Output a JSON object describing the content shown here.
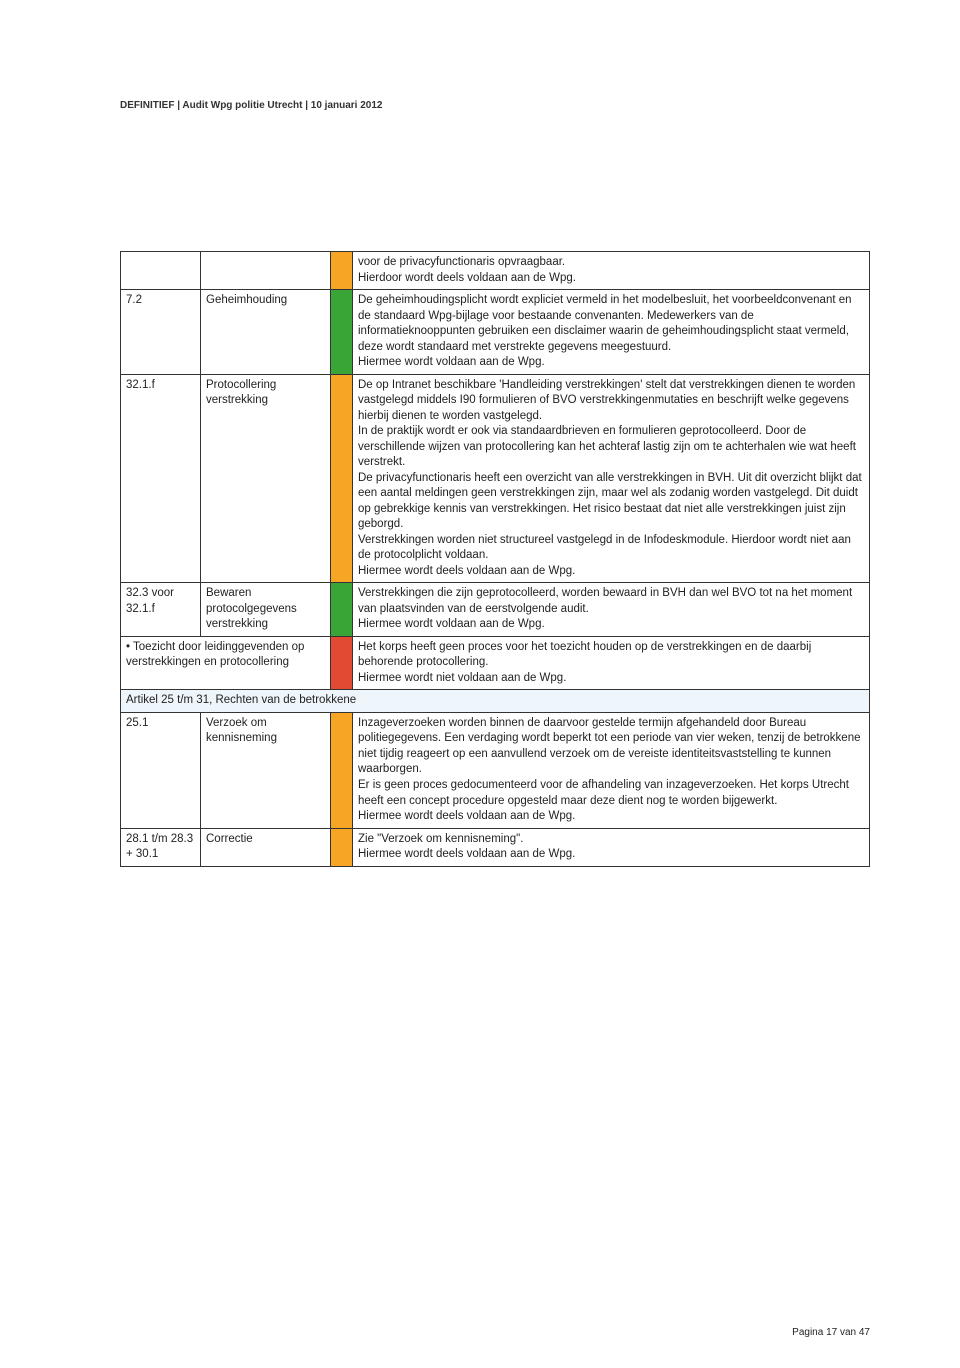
{
  "header": "DEFINITIEF | Audit Wpg politie Utrecht | 10 januari 2012",
  "colors": {
    "orange": "#f6a624",
    "green": "#3aa537",
    "red": "#e24a33"
  },
  "rows": [
    {
      "ref": "",
      "topic": "",
      "color_key": "orange",
      "text": "voor de privacyfunctionaris opvraagbaar.\nHierdoor wordt deels voldaan aan de Wpg."
    },
    {
      "ref": "7.2",
      "topic": "Geheimhouding",
      "color_key": "green",
      "text": "De geheimhoudingsplicht wordt expliciet vermeld in het modelbesluit, het voorbeeldconvenant en de standaard Wpg-bijlage voor bestaande convenanten. Medewerkers van de informatieknooppunten gebruiken een disclaimer waarin de geheimhoudingsplicht staat vermeld, deze wordt standaard met verstrekte gegevens meegestuurd.\nHiermee wordt voldaan aan de Wpg."
    },
    {
      "ref": "32.1.f",
      "topic": "Protocollering verstrekking",
      "color_key": "orange",
      "text": "De op Intranet beschikbare 'Handleiding verstrekkingen' stelt dat verstrekkingen dienen te worden vastgelegd middels I90 formulieren of BVO verstrekkingenmutaties en beschrijft welke gegevens hierbij dienen te worden vastgelegd.\nIn de praktijk wordt er ook via standaardbrieven en formulieren geprotocolleerd. Door de verschillende wijzen van protocollering kan het achteraf lastig zijn om te achterhalen wie wat heeft verstrekt.\nDe privacyfunctionaris heeft een overzicht van alle verstrekkingen in BVH. Uit dit overzicht blijkt dat een aantal meldingen geen verstrekkingen zijn, maar wel als zodanig worden vastgelegd. Dit duidt op gebrekkige kennis van verstrekkingen. Het risico bestaat dat niet alle verstrekkingen juist zijn geborgd.\nVerstrekkingen worden niet structureel vastgelegd in de Infodeskmodule. Hierdoor wordt niet aan de protocolplicht voldaan.\nHiermee wordt deels voldaan aan de Wpg."
    },
    {
      "ref": "32.3 voor 32.1.f",
      "topic": "Bewaren protocolgegevens verstrekking",
      "color_key": "green",
      "text": "Verstrekkingen die zijn geprotocolleerd, worden bewaard in BVH dan wel BVO tot na het moment van plaatsvinden van de eerstvolgende audit.\nHiermee wordt voldaan aan de Wpg."
    },
    {
      "ref_span": "• Toezicht door leidinggevenden op verstrekkingen en protocollering",
      "color_key": "red",
      "text": "Het korps heeft geen proces voor het toezicht houden op de verstrekkingen en de daarbij behorende protocollering.\nHiermee wordt niet voldaan aan de Wpg."
    }
  ],
  "section_header": "Artikel 25 t/m 31, Rechten van de betrokkene",
  "rows2": [
    {
      "ref": "25.1",
      "topic": "Verzoek om kennisneming",
      "color_key": "orange",
      "text": "Inzageverzoeken worden binnen de daarvoor gestelde termijn afgehandeld door Bureau politiegegevens. Een verdaging wordt beperkt tot een periode van vier weken, tenzij de betrokkene niet tijdig reageert op een aanvullend verzoek om de vereiste identiteitsvaststelling te kunnen waarborgen.\nEr is geen proces gedocumenteerd voor de afhandeling van inzageverzoeken. Het korps Utrecht heeft een concept procedure opgesteld maar deze dient nog te worden bijgewerkt.\nHiermee wordt deels voldaan aan de Wpg."
    },
    {
      "ref": "28.1 t/m 28.3 + 30.1",
      "topic": "Correctie",
      "color_key": "orange",
      "text": "Zie \"Verzoek om kennisneming\".\nHiermee wordt deels voldaan aan de Wpg."
    }
  ],
  "footer": "Pagina 17 van 47"
}
